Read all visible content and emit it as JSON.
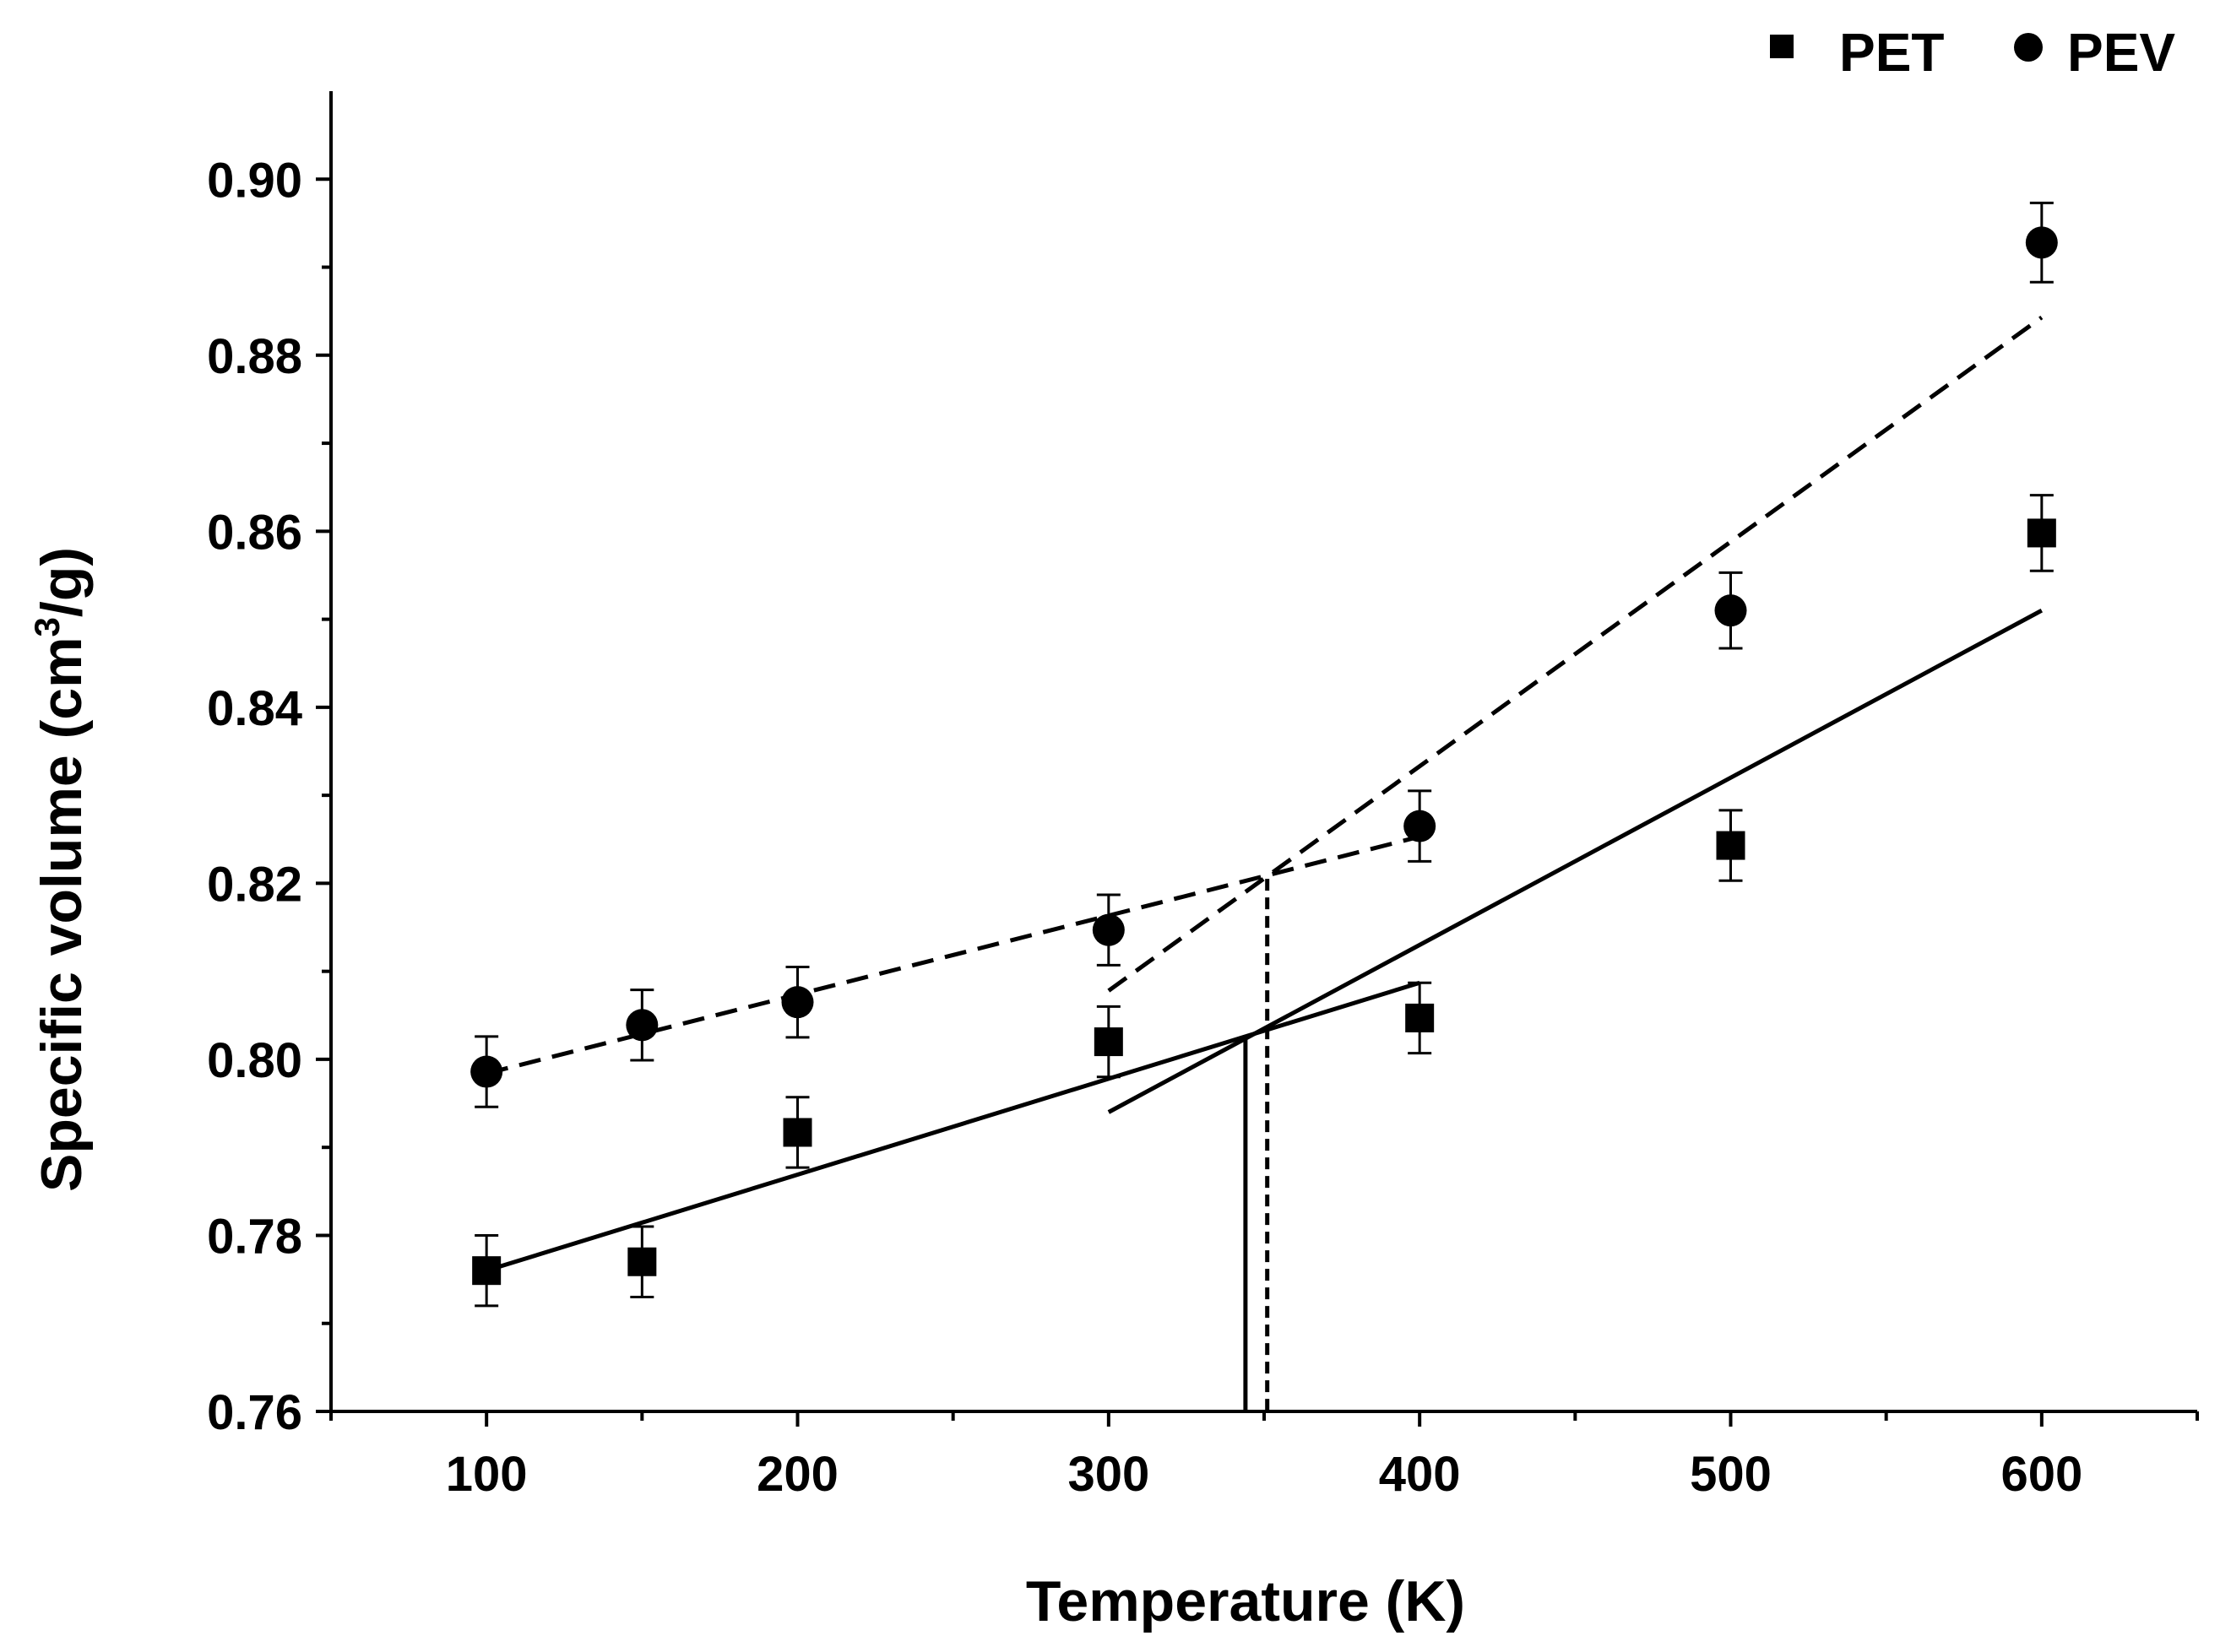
{
  "chart_data": {
    "type": "scatter",
    "title": "",
    "xlabel": "Temperature (K)",
    "ylabel": "Specific volume (cm³/g)",
    "ylabel_parts": {
      "pre": "Specific volume (cm",
      "sup": "3",
      "post": "/g)"
    },
    "xlim": [
      50,
      650
    ],
    "ylim": [
      0.76,
      0.91
    ],
    "x_ticks": [
      100,
      200,
      300,
      400,
      500,
      600
    ],
    "x_tick_labels": [
      "100",
      "200",
      "300",
      "400",
      "500",
      "600"
    ],
    "x_minor_ticks": [
      50,
      150,
      250,
      350,
      450,
      550,
      650
    ],
    "y_ticks": [
      0.76,
      0.78,
      0.8,
      0.82,
      0.84,
      0.86,
      0.88,
      0.9
    ],
    "y_tick_labels": [
      "0.76",
      "0.78",
      "0.80",
      "0.82",
      "0.84",
      "0.86",
      "0.88",
      "0.90"
    ],
    "y_minor_ticks": [
      0.77,
      0.79,
      0.81,
      0.83,
      0.85,
      0.87,
      0.89
    ],
    "grid": false,
    "legend_position": "top-right",
    "series": [
      {
        "name": "PET",
        "marker": "square",
        "x": [
          100,
          150,
          200,
          300,
          400,
          500,
          600
        ],
        "y": [
          0.776,
          0.777,
          0.7917,
          0.802,
          0.8047,
          0.8243,
          0.8598
        ],
        "yerr": [
          0.004,
          0.004,
          0.004,
          0.004,
          0.004,
          0.004,
          0.0043
        ]
      },
      {
        "name": "PEV",
        "marker": "circle",
        "x": [
          100,
          150,
          200,
          300,
          400,
          500,
          600
        ],
        "y": [
          0.7986,
          0.8039,
          0.8065,
          0.8147,
          0.8265,
          0.851,
          0.8928
        ],
        "yerr": [
          0.004,
          0.004,
          0.004,
          0.004,
          0.004,
          0.0043,
          0.0045
        ]
      }
    ],
    "fit_lines": [
      {
        "name": "PET-fit-low",
        "series": "PET",
        "style": "solid",
        "x": [
          100,
          400
        ],
        "y": [
          0.776,
          0.8087
        ]
      },
      {
        "name": "PET-fit-high",
        "series": "PET",
        "style": "solid",
        "x": [
          300,
          600
        ],
        "y": [
          0.794,
          0.851
        ]
      },
      {
        "name": "PEV-fit-low",
        "series": "PEV",
        "style": "dashed",
        "x": [
          100,
          400
        ],
        "y": [
          0.7984,
          0.8253
        ]
      },
      {
        "name": "PEV-fit-high",
        "series": "PEV",
        "style": "dashed",
        "x": [
          300,
          600
        ],
        "y": [
          0.8078,
          0.8843
        ]
      }
    ],
    "transition_markers": [
      {
        "name": "PET-Tg-marker",
        "series": "PET",
        "style": "solid",
        "x": 344,
        "y_top": 0.8025
      },
      {
        "name": "PEV-Tg-marker",
        "series": "PEV",
        "style": "dashed",
        "x": 351,
        "y_top": 0.8205
      }
    ]
  },
  "legend": {
    "items": [
      {
        "label": "PET",
        "marker": "square"
      },
      {
        "label": "PEV",
        "marker": "circle"
      }
    ]
  }
}
